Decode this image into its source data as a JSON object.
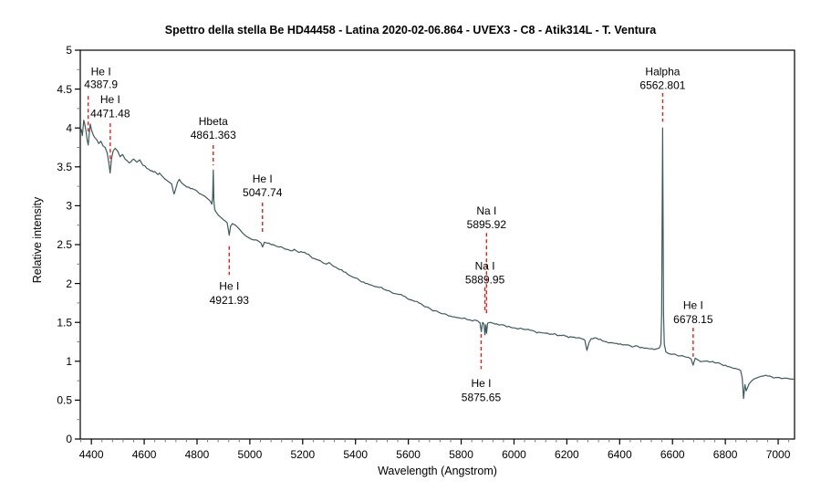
{
  "chart_data": {
    "type": "line",
    "title": "Spettro della stella Be HD44458 - Latina 2020-02-06.864 - UVEX3 - C8 - Atik314L - T. Ventura",
    "xlabel": "Wavelength (Angstrom)",
    "ylabel": "Relative intensity",
    "xlim": [
      4358,
      7062
    ],
    "ylim": [
      0,
      5
    ],
    "x_major_ticks": [
      4400,
      4600,
      4800,
      5000,
      5200,
      5400,
      5600,
      5800,
      6000,
      6200,
      6400,
      6600,
      6800,
      7000
    ],
    "x_minor_step": 40,
    "y_major_ticks": [
      0,
      0.5,
      1,
      1.5,
      2,
      2.5,
      3,
      3.5,
      4,
      4.5,
      5
    ],
    "y_major_labels": [
      "0",
      "0.5",
      "1",
      "1.5",
      "2",
      "2.5",
      "3",
      "3.5",
      "4",
      "4.5",
      "5"
    ],
    "y_minor_step": 0.25,
    "grid": false,
    "legend": null,
    "line_color": "#3d5a5a",
    "annotation_color": "#ef1a14",
    "axis_color": "#000000",
    "minor_tick_color": "#777777",
    "noise_amplitude": 0.013,
    "series": [
      {
        "name": "HD44458 relative intensity",
        "points": [
          [
            4358,
            3.92
          ],
          [
            4362,
            3.98
          ],
          [
            4366,
            3.9
          ],
          [
            4371,
            4.1
          ],
          [
            4375,
            4.05
          ],
          [
            4380,
            3.95
          ],
          [
            4384,
            3.85
          ],
          [
            4388,
            3.78
          ],
          [
            4392,
            3.92
          ],
          [
            4396,
            4.05
          ],
          [
            4400,
            3.98
          ],
          [
            4406,
            3.92
          ],
          [
            4412,
            3.88
          ],
          [
            4420,
            3.85
          ],
          [
            4428,
            3.8
          ],
          [
            4436,
            3.83
          ],
          [
            4444,
            3.77
          ],
          [
            4452,
            3.75
          ],
          [
            4460,
            3.68
          ],
          [
            4466,
            3.55
          ],
          [
            4471,
            3.42
          ],
          [
            4476,
            3.6
          ],
          [
            4482,
            3.7
          ],
          [
            4490,
            3.74
          ],
          [
            4500,
            3.7
          ],
          [
            4509,
            3.63
          ],
          [
            4518,
            3.66
          ],
          [
            4528,
            3.6
          ],
          [
            4543,
            3.55
          ],
          [
            4560,
            3.6
          ],
          [
            4572,
            3.56
          ],
          [
            4583,
            3.59
          ],
          [
            4595,
            3.52
          ],
          [
            4610,
            3.48
          ],
          [
            4624,
            3.45
          ],
          [
            4640,
            3.44
          ],
          [
            4652,
            3.4
          ],
          [
            4658,
            3.42
          ],
          [
            4668,
            3.38
          ],
          [
            4680,
            3.34
          ],
          [
            4692,
            3.31
          ],
          [
            4704,
            3.28
          ],
          [
            4708,
            3.22
          ],
          [
            4713,
            3.15
          ],
          [
            4718,
            3.2
          ],
          [
            4726,
            3.3
          ],
          [
            4733,
            3.34
          ],
          [
            4740,
            3.3
          ],
          [
            4750,
            3.27
          ],
          [
            4762,
            3.24
          ],
          [
            4775,
            3.22
          ],
          [
            4788,
            3.21
          ],
          [
            4796,
            3.2
          ],
          [
            4808,
            3.16
          ],
          [
            4820,
            3.14
          ],
          [
            4830,
            3.12
          ],
          [
            4840,
            3.09
          ],
          [
            4850,
            3.06
          ],
          [
            4856,
            3.02
          ],
          [
            4859,
            3.1
          ],
          [
            4861.4,
            3.46
          ],
          [
            4864,
            3.05
          ],
          [
            4867,
            2.95
          ],
          [
            4872,
            2.92
          ],
          [
            4880,
            2.88
          ],
          [
            4890,
            2.85
          ],
          [
            4900,
            2.82
          ],
          [
            4908,
            2.8
          ],
          [
            4914,
            2.78
          ],
          [
            4918,
            2.7
          ],
          [
            4922,
            2.62
          ],
          [
            4927,
            2.74
          ],
          [
            4934,
            2.77
          ],
          [
            4945,
            2.75
          ],
          [
            4955,
            2.72
          ],
          [
            4965,
            2.68
          ],
          [
            4975,
            2.64
          ],
          [
            4985,
            2.61
          ],
          [
            4995,
            2.59
          ],
          [
            5005,
            2.57
          ],
          [
            5015,
            2.56
          ],
          [
            5025,
            2.56
          ],
          [
            5035,
            2.54
          ],
          [
            5042,
            2.52
          ],
          [
            5048,
            2.47
          ],
          [
            5055,
            2.53
          ],
          [
            5065,
            2.52
          ],
          [
            5080,
            2.5
          ],
          [
            5095,
            2.49
          ],
          [
            5110,
            2.47
          ],
          [
            5125,
            2.46
          ],
          [
            5140,
            2.44
          ],
          [
            5155,
            2.42
          ],
          [
            5168,
            2.44
          ],
          [
            5180,
            2.41
          ],
          [
            5200,
            2.4
          ],
          [
            5215,
            2.38
          ],
          [
            5230,
            2.35
          ],
          [
            5245,
            2.32
          ],
          [
            5260,
            2.3
          ],
          [
            5275,
            2.27
          ],
          [
            5290,
            2.25
          ],
          [
            5300,
            2.27
          ],
          [
            5310,
            2.24
          ],
          [
            5325,
            2.21
          ],
          [
            5340,
            2.18
          ],
          [
            5355,
            2.15
          ],
          [
            5370,
            2.12
          ],
          [
            5385,
            2.09
          ],
          [
            5400,
            2.07
          ],
          [
            5415,
            2.04
          ],
          [
            5430,
            2.02
          ],
          [
            5445,
            2.0
          ],
          [
            5460,
            1.98
          ],
          [
            5475,
            1.96
          ],
          [
            5490,
            1.95
          ],
          [
            5505,
            1.93
          ],
          [
            5520,
            1.91
          ],
          [
            5535,
            1.89
          ],
          [
            5550,
            1.87
          ],
          [
            5565,
            1.86
          ],
          [
            5580,
            1.84
          ],
          [
            5595,
            1.81
          ],
          [
            5610,
            1.79
          ],
          [
            5625,
            1.77
          ],
          [
            5640,
            1.75
          ],
          [
            5655,
            1.72
          ],
          [
            5670,
            1.7
          ],
          [
            5685,
            1.67
          ],
          [
            5700,
            1.65
          ],
          [
            5715,
            1.63
          ],
          [
            5730,
            1.61
          ],
          [
            5745,
            1.6
          ],
          [
            5760,
            1.58
          ],
          [
            5775,
            1.57
          ],
          [
            5790,
            1.56
          ],
          [
            5805,
            1.55
          ],
          [
            5820,
            1.54
          ],
          [
            5835,
            1.53
          ],
          [
            5850,
            1.53
          ],
          [
            5862,
            1.52
          ],
          [
            5868,
            1.5
          ],
          [
            5871,
            1.5
          ],
          [
            5876,
            1.38
          ],
          [
            5881,
            1.5
          ],
          [
            5886,
            1.48
          ],
          [
            5890,
            1.34
          ],
          [
            5893,
            1.47
          ],
          [
            5896,
            1.36
          ],
          [
            5900,
            1.49
          ],
          [
            5910,
            1.5
          ],
          [
            5920,
            1.49
          ],
          [
            5935,
            1.48
          ],
          [
            5950,
            1.47
          ],
          [
            5965,
            1.46
          ],
          [
            5980,
            1.45
          ],
          [
            6000,
            1.43
          ],
          [
            6020,
            1.42
          ],
          [
            6040,
            1.41
          ],
          [
            6060,
            1.4
          ],
          [
            6080,
            1.38
          ],
          [
            6100,
            1.37
          ],
          [
            6120,
            1.36
          ],
          [
            6140,
            1.35
          ],
          [
            6160,
            1.34
          ],
          [
            6180,
            1.33
          ],
          [
            6200,
            1.32
          ],
          [
            6220,
            1.31
          ],
          [
            6240,
            1.3
          ],
          [
            6255,
            1.29
          ],
          [
            6268,
            1.27
          ],
          [
            6276,
            1.14
          ],
          [
            6284,
            1.24
          ],
          [
            6292,
            1.29
          ],
          [
            6305,
            1.3
          ],
          [
            6320,
            1.28
          ],
          [
            6335,
            1.26
          ],
          [
            6350,
            1.25
          ],
          [
            6365,
            1.24
          ],
          [
            6380,
            1.23
          ],
          [
            6395,
            1.22
          ],
          [
            6410,
            1.21
          ],
          [
            6425,
            1.21
          ],
          [
            6440,
            1.2
          ],
          [
            6455,
            1.19
          ],
          [
            6470,
            1.19
          ],
          [
            6485,
            1.18
          ],
          [
            6500,
            1.17
          ],
          [
            6515,
            1.16
          ],
          [
            6530,
            1.15
          ],
          [
            6540,
            1.16
          ],
          [
            6550,
            1.17
          ],
          [
            6556,
            1.22
          ],
          [
            6559,
            1.6
          ],
          [
            6562.8,
            4.0
          ],
          [
            6566,
            1.6
          ],
          [
            6569,
            1.22
          ],
          [
            6575,
            1.12
          ],
          [
            6585,
            1.1
          ],
          [
            6600,
            1.09
          ],
          [
            6615,
            1.08
          ],
          [
            6630,
            1.07
          ],
          [
            6645,
            1.06
          ],
          [
            6660,
            1.05
          ],
          [
            6670,
            1.03
          ],
          [
            6678,
            0.95
          ],
          [
            6686,
            1.04
          ],
          [
            6700,
            1.01
          ],
          [
            6720,
            1.0
          ],
          [
            6740,
            0.99
          ],
          [
            6760,
            0.98
          ],
          [
            6780,
            0.97
          ],
          [
            6800,
            0.95
          ],
          [
            6815,
            0.93
          ],
          [
            6830,
            0.91
          ],
          [
            6845,
            0.9
          ],
          [
            6858,
            0.88
          ],
          [
            6864,
            0.78
          ],
          [
            6869,
            0.52
          ],
          [
            6874,
            0.7
          ],
          [
            6879,
            0.62
          ],
          [
            6884,
            0.66
          ],
          [
            6890,
            0.71
          ],
          [
            6900,
            0.75
          ],
          [
            6915,
            0.78
          ],
          [
            6930,
            0.8
          ],
          [
            6945,
            0.81
          ],
          [
            6960,
            0.81
          ],
          [
            6975,
            0.8
          ],
          [
            6990,
            0.79
          ],
          [
            7005,
            0.79
          ],
          [
            7020,
            0.78
          ],
          [
            7035,
            0.78
          ],
          [
            7050,
            0.77
          ],
          [
            7062,
            0.77
          ]
        ]
      }
    ],
    "annotations": [
      {
        "label": [
          "He I",
          "4387.9"
        ],
        "wavelength": 4387.9,
        "label_dx": 14,
        "label_y": [
          4.68,
          4.51
        ],
        "dash": [
          4.41,
          3.93
        ]
      },
      {
        "label": [
          "He I",
          "4471.48"
        ],
        "wavelength": 4471.48,
        "label_dx": 0,
        "label_y": [
          4.32,
          4.14
        ],
        "dash": [
          4.06,
          3.56
        ]
      },
      {
        "label": [
          "Hbeta",
          "4861.363"
        ],
        "wavelength": 4861.363,
        "label_dx": 0,
        "label_y": [
          4.04,
          3.86
        ],
        "dash": [
          3.78,
          3.52
        ]
      },
      {
        "label": [
          "He I",
          "5047.74"
        ],
        "wavelength": 5047.74,
        "label_dx": 0,
        "label_y": [
          3.3,
          3.12
        ],
        "dash": [
          3.04,
          2.63
        ]
      },
      {
        "label": [
          "He I",
          "4921.93"
        ],
        "wavelength": 4921.93,
        "label_dx": 0,
        "label_y": [
          1.92,
          1.74
        ],
        "dash": [
          2.48,
          2.11
        ]
      },
      {
        "label": [
          "Na I",
          "5895.92"
        ],
        "wavelength": 5895.92,
        "label_dx": 0,
        "label_y": [
          2.89,
          2.71
        ],
        "dash": [
          2.65,
          1.62
        ]
      },
      {
        "label": [
          "Na I",
          "5889.95"
        ],
        "wavelength": 5889.95,
        "label_dx": 0,
        "label_y": [
          2.18,
          2.0
        ],
        "dash": [
          1.95,
          1.62
        ]
      },
      {
        "label": [
          "He I",
          "5875.65"
        ],
        "wavelength": 5875.65,
        "label_dx": 0,
        "label_y": [
          0.67,
          0.49
        ],
        "dash": [
          1.35,
          0.9
        ]
      },
      {
        "label": [
          "Halpha",
          "6562.801"
        ],
        "wavelength": 6562.801,
        "label_dx": 0,
        "label_y": [
          4.68,
          4.5
        ],
        "dash": [
          4.45,
          4.08
        ]
      },
      {
        "label": [
          "He I",
          "6678.15"
        ],
        "wavelength": 6678.15,
        "label_dx": 0,
        "label_y": [
          1.67,
          1.49
        ],
        "dash": [
          1.43,
          1.06
        ]
      }
    ]
  }
}
